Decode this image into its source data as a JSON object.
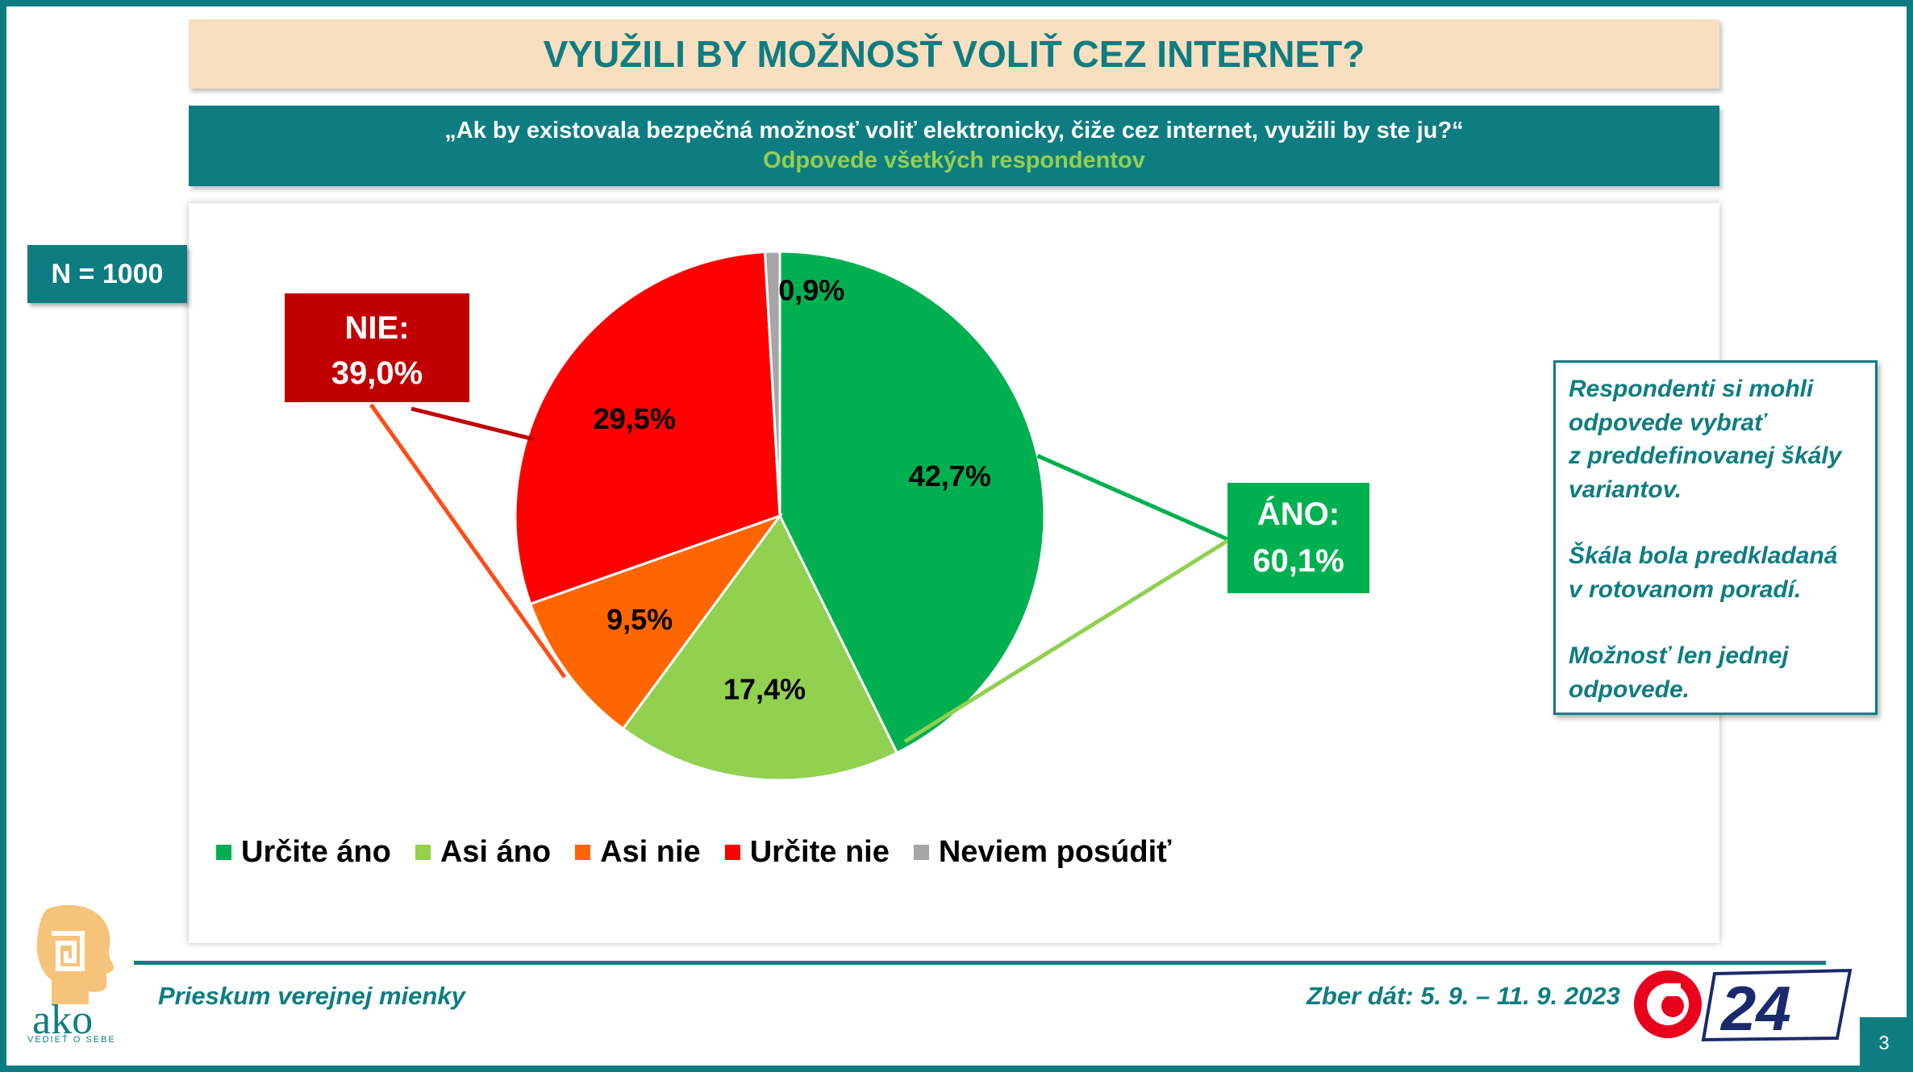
{
  "title": "VYUŽILI BY MOŽNOSŤ VOLIŤ CEZ INTERNET?",
  "question": "„Ak by existovala bezpečná možnosť voliť elektronicky, čiže cez internet, využili by ste ju?“",
  "subtitle": "Odpovede všetkých respondentov",
  "n_badge": "N = 1000",
  "note": {
    "lines_1": [
      "Respondenti si mohli",
      "odpovede vybrať",
      "z preddefinovanej škály",
      "variantov."
    ],
    "lines_2": [
      "Škála bola predkladaná",
      "v rotovanom poradí."
    ],
    "lines_3": [
      "Možnosť len jednej",
      "odpovede."
    ]
  },
  "chart_data": {
    "type": "pie",
    "start_angle_deg": 0,
    "direction": "clockwise",
    "slices": [
      {
        "label": "Určite áno",
        "value": 42.7,
        "display": "42,7%",
        "color": "#00b050"
      },
      {
        "label": "Asi áno",
        "value": 17.4,
        "display": "17,4%",
        "color": "#92d050"
      },
      {
        "label": "Asi nie",
        "value": 9.5,
        "display": "9,5%",
        "color": "#ff6600"
      },
      {
        "label": "Určite nie",
        "value": 29.5,
        "display": "29,5%",
        "color": "#ff0000"
      },
      {
        "label": "Neviem posúdiť",
        "value": 0.9,
        "display": "0,9%",
        "color": "#a6a6a6"
      }
    ],
    "legend_position": "bottom",
    "groups": [
      {
        "label_line1": "ÁNO:",
        "label_line2": "60,1%",
        "value": 60.1,
        "color": "#00b050",
        "members": [
          "Určite áno",
          "Asi áno"
        ]
      },
      {
        "label_line1": "NIE:",
        "label_line2": "39,0%",
        "value": 39.0,
        "color": "#c00000",
        "members": [
          "Asi nie",
          "Určite nie"
        ]
      }
    ]
  },
  "footer": {
    "left": "Prieskum verejnej mienky",
    "right": "Zber dát: 5. 9. – 11. 9. 2023",
    "page": "3",
    "ako_text": "ako",
    "ako_tagline": "VEDIEŤ O SEBE",
    "tv_text": "24"
  }
}
